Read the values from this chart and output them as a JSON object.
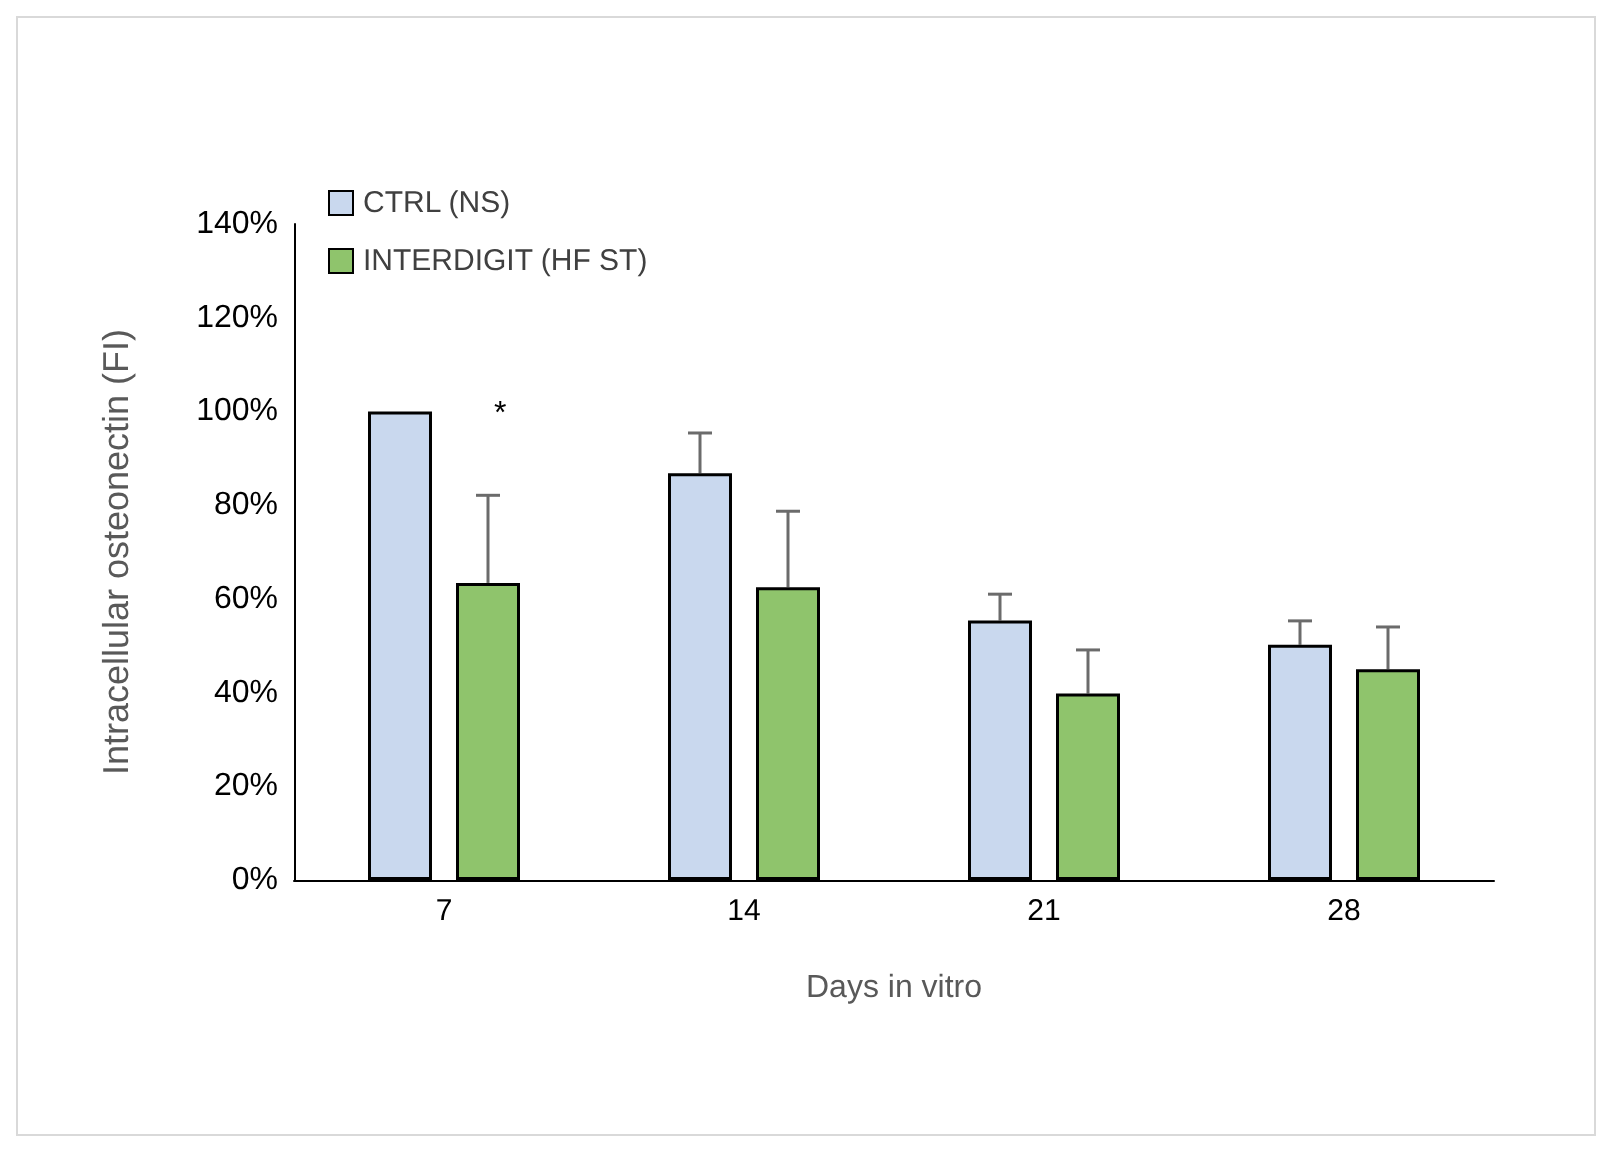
{
  "chart_data": {
    "type": "bar",
    "xlabel": "Days in vitro",
    "ylabel": "Intracellular osteonectin (FI)",
    "categories": [
      "7",
      "14",
      "21",
      "28"
    ],
    "series": [
      {
        "name": "CTRL (NS)",
        "color": "#c9d8ee",
        "values": [
          100,
          86.8,
          55.4,
          50.2
        ],
        "errors": [
          null,
          [
            86.8,
            95.4
          ],
          [
            55.4,
            61
          ],
          [
            50.2,
            55.3
          ]
        ]
      },
      {
        "name": "INTERDIGIT (HF ST)",
        "color": "#8fc46c",
        "values": [
          63.4,
          62.5,
          39.8,
          45
        ],
        "errors": [
          [
            63.4,
            82.1
          ],
          [
            62.5,
            78.7
          ],
          [
            39.8,
            49.1
          ],
          [
            45,
            54
          ]
        ]
      }
    ],
    "ylim": [
      0,
      140
    ],
    "yticks": [
      {
        "value": 0,
        "label": "0%"
      },
      {
        "value": 20,
        "label": "20%"
      },
      {
        "value": 40,
        "label": "40%"
      },
      {
        "value": 60,
        "label": "60%"
      },
      {
        "value": 80,
        "label": "80%"
      },
      {
        "value": 100,
        "label": "100%"
      },
      {
        "value": 120,
        "label": "120%"
      },
      {
        "value": 140,
        "label": "140%"
      }
    ],
    "annotations": [
      "*"
    ],
    "grid": false,
    "legend": "top left"
  }
}
